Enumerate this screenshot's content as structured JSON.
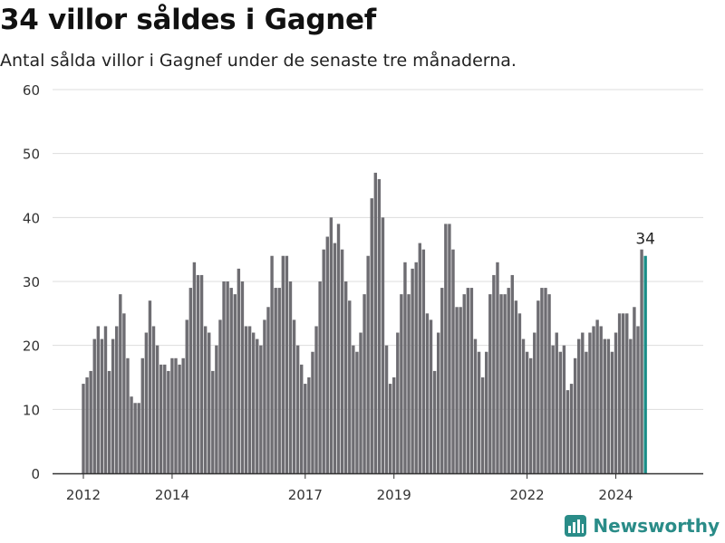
{
  "title": "34 villor såldes i Gagnef",
  "subtitle": "Antal sålda villor i Gagnef under de senaste tre månaderna.",
  "brand": {
    "name": "Newsworthy"
  },
  "colors": {
    "bar": "#6e6d72",
    "highlight": "#1a8d87",
    "grid": "#dddddd",
    "axis": "#333333",
    "text": "#333333"
  },
  "chart_data": {
    "type": "bar",
    "x_start": "2012-01",
    "x_end": "2024-10",
    "values": [
      14,
      15,
      16,
      21,
      23,
      21,
      23,
      16,
      21,
      23,
      28,
      25,
      18,
      12,
      11,
      11,
      18,
      22,
      27,
      23,
      20,
      17,
      17,
      16,
      18,
      18,
      17,
      18,
      24,
      29,
      33,
      31,
      31,
      23,
      22,
      16,
      20,
      24,
      30,
      30,
      29,
      28,
      32,
      30,
      23,
      23,
      22,
      21,
      20,
      24,
      26,
      34,
      29,
      29,
      34,
      34,
      30,
      24,
      20,
      17,
      14,
      15,
      19,
      23,
      30,
      35,
      37,
      40,
      36,
      39,
      35,
      30,
      27,
      20,
      19,
      22,
      28,
      34,
      43,
      47,
      46,
      40,
      20,
      14,
      15,
      22,
      28,
      33,
      28,
      32,
      33,
      36,
      35,
      25,
      24,
      16,
      22,
      29,
      39,
      39,
      35,
      26,
      26,
      28,
      29,
      29,
      21,
      19,
      15,
      19,
      28,
      31,
      33,
      28,
      28,
      29,
      31,
      27,
      25,
      21,
      19,
      18,
      22,
      27,
      29,
      29,
      28,
      20,
      22,
      19,
      20,
      13,
      14,
      18,
      21,
      22,
      19,
      22,
      23,
      24,
      23,
      21,
      21,
      19,
      22,
      25,
      25,
      25,
      21,
      26,
      23,
      35,
      34
    ],
    "highlight_index": 152,
    "annotation": "34",
    "ylim": [
      0,
      60
    ],
    "yticks": [
      0,
      10,
      20,
      30,
      40,
      50,
      60
    ],
    "xticks": [
      "2012",
      "2014",
      "2017",
      "2019",
      "2022",
      "2024"
    ],
    "xtick_dates": [
      "2012-01",
      "2014-01",
      "2017-01",
      "2019-01",
      "2022-01",
      "2024-01"
    ],
    "grid": true
  }
}
